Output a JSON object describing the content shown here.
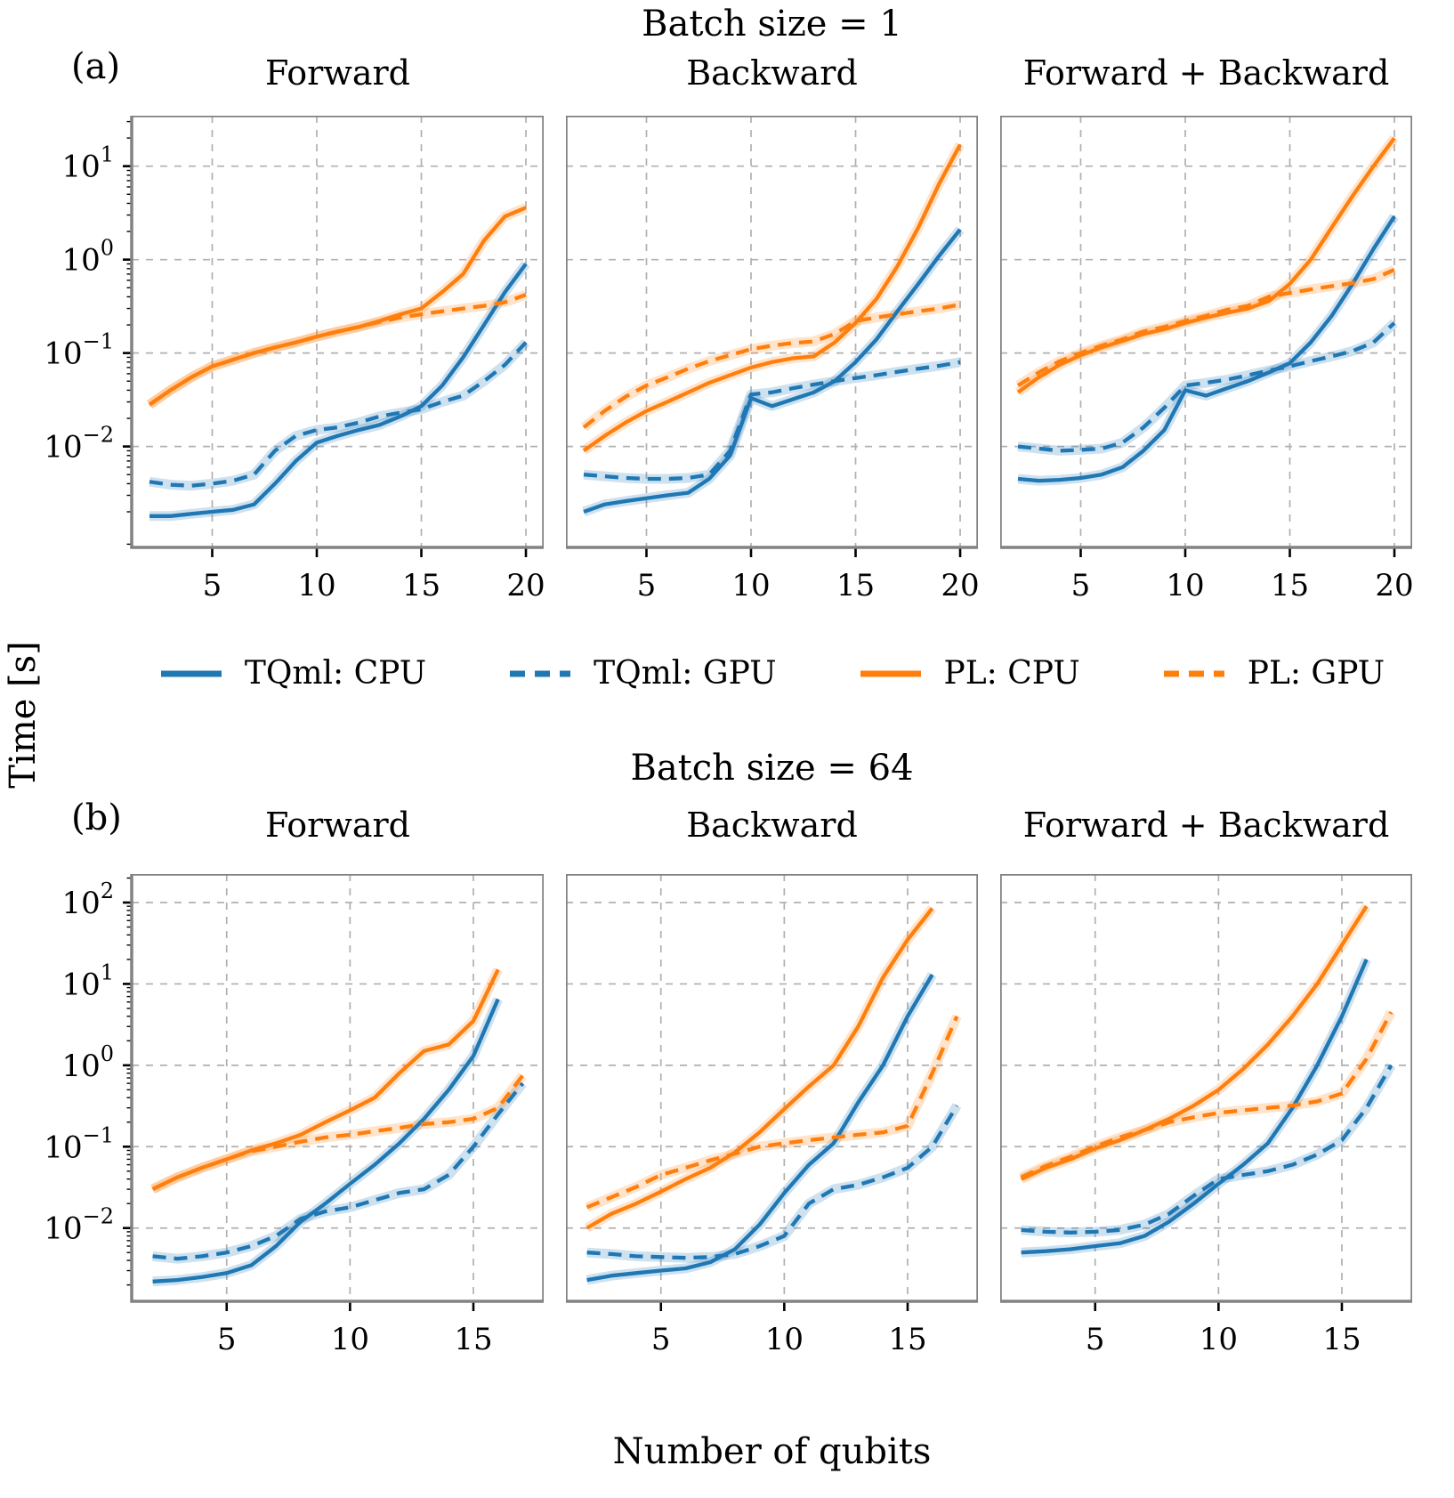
{
  "figure": {
    "suptitle_a": "Batch size = 1",
    "suptitle_b": "Batch size = 64",
    "row_a_label": "(a)",
    "row_b_label": "(b)",
    "ylabel": "Time [s]",
    "xlabel": "Number of qubits",
    "legend": [
      {
        "label": "TQml: CPU",
        "color": "#1f77b4",
        "dash": false
      },
      {
        "label": "TQml: GPU",
        "color": "#1f77b4",
        "dash": true
      },
      {
        "label": "PL: CPU",
        "color": "#ff7f0e",
        "dash": false
      },
      {
        "label": "PL: GPU",
        "color": "#ff7f0e",
        "dash": true
      }
    ],
    "accent_blue": "#1f77b4",
    "accent_orange": "#ff7f0e"
  },
  "chart_data": [
    {
      "type": "line",
      "title": "Forward",
      "group": "Batch size = 1",
      "xlabel": "Number of qubits",
      "ylabel": "Time [s]",
      "grid": true,
      "x": [
        2,
        3,
        4,
        5,
        6,
        7,
        8,
        9,
        10,
        11,
        12,
        13,
        14,
        15,
        16,
        17,
        18,
        19,
        20
      ],
      "xlim": [
        1.15,
        20.85
      ],
      "ylim_log10": [
        -3.08,
        1.54
      ],
      "x_ticks": [
        5,
        10,
        15,
        20
      ],
      "y_ticks_log10": [
        1,
        0,
        -1,
        -2
      ],
      "series": [
        {
          "name": "TQml: CPU",
          "color": "#1f77b4",
          "dash": false,
          "values": [
            0.0018,
            0.0018,
            0.0019,
            0.002,
            0.0021,
            0.0024,
            0.004,
            0.007,
            0.011,
            0.013,
            0.015,
            0.017,
            0.021,
            0.027,
            0.045,
            0.09,
            0.2,
            0.45,
            0.9
          ]
        },
        {
          "name": "TQml: GPU",
          "color": "#1f77b4",
          "dash": true,
          "values": [
            0.0042,
            0.0039,
            0.0038,
            0.004,
            0.0043,
            0.005,
            0.009,
            0.013,
            0.015,
            0.016,
            0.018,
            0.021,
            0.023,
            0.025,
            0.03,
            0.035,
            0.05,
            0.075,
            0.13
          ]
        },
        {
          "name": "PL: CPU",
          "color": "#ff7f0e",
          "dash": false,
          "values": [
            0.028,
            0.04,
            0.055,
            0.072,
            0.085,
            0.1,
            0.115,
            0.13,
            0.15,
            0.17,
            0.19,
            0.22,
            0.26,
            0.3,
            0.45,
            0.7,
            1.6,
            2.9,
            3.6
          ]
        },
        {
          "name": "PL: GPU",
          "color": "#ff7f0e",
          "dash": true,
          "values": [
            0.028,
            0.04,
            0.055,
            0.072,
            0.085,
            0.1,
            0.115,
            0.13,
            0.15,
            0.17,
            0.19,
            0.215,
            0.24,
            0.26,
            0.28,
            0.3,
            0.32,
            0.35,
            0.42
          ]
        }
      ]
    },
    {
      "type": "line",
      "title": "Backward",
      "group": "Batch size = 1",
      "xlabel": "Number of qubits",
      "ylabel": "Time [s]",
      "grid": true,
      "x": [
        2,
        3,
        4,
        5,
        6,
        7,
        8,
        9,
        10,
        11,
        12,
        13,
        14,
        15,
        16,
        17,
        18,
        19,
        20
      ],
      "xlim": [
        1.15,
        20.85
      ],
      "ylim_log10": [
        -3.08,
        1.54
      ],
      "x_ticks": [
        5,
        10,
        15,
        20
      ],
      "y_ticks_log10": [
        1,
        0,
        -1,
        -2
      ],
      "series": [
        {
          "name": "TQml: CPU",
          "color": "#1f77b4",
          "dash": false,
          "values": [
            0.002,
            0.0024,
            0.0026,
            0.0028,
            0.003,
            0.0032,
            0.0045,
            0.008,
            0.033,
            0.027,
            0.032,
            0.038,
            0.05,
            0.08,
            0.14,
            0.28,
            0.55,
            1.1,
            2.1
          ]
        },
        {
          "name": "TQml: GPU",
          "color": "#1f77b4",
          "dash": true,
          "values": [
            0.005,
            0.0048,
            0.0046,
            0.0045,
            0.0045,
            0.0046,
            0.005,
            0.009,
            0.036,
            0.038,
            0.042,
            0.046,
            0.05,
            0.054,
            0.058,
            0.063,
            0.068,
            0.073,
            0.08
          ]
        },
        {
          "name": "PL: CPU",
          "color": "#ff7f0e",
          "dash": false,
          "values": [
            0.009,
            0.013,
            0.018,
            0.024,
            0.03,
            0.038,
            0.048,
            0.058,
            0.07,
            0.08,
            0.088,
            0.092,
            0.13,
            0.21,
            0.38,
            0.85,
            2.2,
            6.5,
            17
          ]
        },
        {
          "name": "PL: GPU",
          "color": "#ff7f0e",
          "dash": true,
          "values": [
            0.016,
            0.024,
            0.034,
            0.045,
            0.055,
            0.068,
            0.082,
            0.095,
            0.11,
            0.12,
            0.128,
            0.133,
            0.16,
            0.22,
            0.24,
            0.26,
            0.28,
            0.3,
            0.33
          ]
        }
      ]
    },
    {
      "type": "line",
      "title": "Forward + Backward",
      "group": "Batch size = 1",
      "xlabel": "Number of qubits",
      "ylabel": "Time [s]",
      "grid": true,
      "x": [
        2,
        3,
        4,
        5,
        6,
        7,
        8,
        9,
        10,
        11,
        12,
        13,
        14,
        15,
        16,
        17,
        18,
        19,
        20
      ],
      "xlim": [
        1.15,
        20.85
      ],
      "ylim_log10": [
        -3.08,
        1.54
      ],
      "x_ticks": [
        5,
        10,
        15,
        20
      ],
      "y_ticks_log10": [
        1,
        0,
        -1,
        -2
      ],
      "series": [
        {
          "name": "TQml: CPU",
          "color": "#1f77b4",
          "dash": false,
          "values": [
            0.0045,
            0.0043,
            0.0044,
            0.0046,
            0.005,
            0.006,
            0.009,
            0.015,
            0.04,
            0.035,
            0.042,
            0.05,
            0.062,
            0.078,
            0.13,
            0.25,
            0.55,
            1.3,
            2.9
          ]
        },
        {
          "name": "TQml: GPU",
          "color": "#1f77b4",
          "dash": true,
          "values": [
            0.01,
            0.0095,
            0.009,
            0.0092,
            0.0095,
            0.011,
            0.016,
            0.026,
            0.045,
            0.048,
            0.052,
            0.058,
            0.065,
            0.072,
            0.082,
            0.092,
            0.105,
            0.13,
            0.21
          ]
        },
        {
          "name": "PL: CPU",
          "color": "#ff7f0e",
          "dash": false,
          "values": [
            0.038,
            0.055,
            0.075,
            0.095,
            0.115,
            0.135,
            0.16,
            0.18,
            0.21,
            0.24,
            0.27,
            0.3,
            0.36,
            0.55,
            1.0,
            2.2,
            4.8,
            10,
            20
          ]
        },
        {
          "name": "PL: GPU",
          "color": "#ff7f0e",
          "dash": true,
          "values": [
            0.045,
            0.062,
            0.082,
            0.1,
            0.12,
            0.14,
            0.17,
            0.19,
            0.22,
            0.25,
            0.29,
            0.32,
            0.4,
            0.44,
            0.48,
            0.52,
            0.56,
            0.62,
            0.78
          ]
        }
      ]
    },
    {
      "type": "line",
      "title": "Forward",
      "group": "Batch size = 64",
      "xlabel": "Number of qubits",
      "ylabel": "Time [s]",
      "grid": true,
      "x": [
        2,
        3,
        4,
        5,
        6,
        7,
        8,
        9,
        10,
        11,
        12,
        13,
        14,
        15,
        16,
        17
      ],
      "xlim": [
        1.15,
        17.85
      ],
      "ylim_log10": [
        -2.9,
        2.35
      ],
      "x_ticks": [
        5,
        10,
        15
      ],
      "y_ticks_log10": [
        2,
        1,
        0,
        -1,
        -2
      ],
      "series": [
        {
          "name": "TQml: CPU",
          "color": "#1f77b4",
          "dash": false,
          "values": [
            0.0022,
            0.0023,
            0.0025,
            0.0028,
            0.0035,
            0.006,
            0.012,
            0.02,
            0.035,
            0.06,
            0.11,
            0.22,
            0.5,
            1.3,
            6.5
          ]
        },
        {
          "name": "TQml: GPU",
          "color": "#1f77b4",
          "dash": true,
          "values": [
            0.0045,
            0.0042,
            0.0045,
            0.005,
            0.006,
            0.008,
            0.013,
            0.016,
            0.018,
            0.022,
            0.027,
            0.03,
            0.045,
            0.1,
            0.25,
            0.6
          ]
        },
        {
          "name": "PL: CPU",
          "color": "#ff7f0e",
          "dash": false,
          "values": [
            0.03,
            0.042,
            0.055,
            0.07,
            0.09,
            0.11,
            0.14,
            0.2,
            0.28,
            0.4,
            0.8,
            1.5,
            1.8,
            3.5,
            15
          ]
        },
        {
          "name": "PL: GPU",
          "color": "#ff7f0e",
          "dash": true,
          "values": [
            0.03,
            0.042,
            0.055,
            0.07,
            0.088,
            0.1,
            0.115,
            0.13,
            0.14,
            0.155,
            0.17,
            0.19,
            0.2,
            0.22,
            0.3,
            0.75
          ]
        }
      ]
    },
    {
      "type": "line",
      "title": "Backward",
      "group": "Batch size = 64",
      "xlabel": "Number of qubits",
      "ylabel": "Time [s]",
      "grid": true,
      "x": [
        2,
        3,
        4,
        5,
        6,
        7,
        8,
        9,
        10,
        11,
        12,
        13,
        14,
        15,
        16,
        17
      ],
      "xlim": [
        1.15,
        17.85
      ],
      "ylim_log10": [
        -2.9,
        2.35
      ],
      "x_ticks": [
        5,
        10,
        15
      ],
      "y_ticks_log10": [
        2,
        1,
        0,
        -1,
        -2
      ],
      "series": [
        {
          "name": "TQml: CPU",
          "color": "#1f77b4",
          "dash": false,
          "values": [
            0.0023,
            0.0026,
            0.0028,
            0.003,
            0.0032,
            0.0038,
            0.0055,
            0.011,
            0.027,
            0.06,
            0.11,
            0.35,
            1.0,
            4.0,
            13
          ]
        },
        {
          "name": "TQml: GPU",
          "color": "#1f77b4",
          "dash": true,
          "values": [
            0.005,
            0.0048,
            0.0045,
            0.0044,
            0.0043,
            0.0044,
            0.0048,
            0.006,
            0.008,
            0.02,
            0.03,
            0.034,
            0.042,
            0.055,
            0.1,
            0.32
          ]
        },
        {
          "name": "PL: CPU",
          "color": "#ff7f0e",
          "dash": false,
          "values": [
            0.01,
            0.015,
            0.02,
            0.028,
            0.04,
            0.055,
            0.085,
            0.15,
            0.29,
            0.55,
            1.0,
            3.0,
            12,
            35,
            85
          ]
        },
        {
          "name": "PL: GPU",
          "color": "#ff7f0e",
          "dash": true,
          "values": [
            0.018,
            0.024,
            0.032,
            0.045,
            0.055,
            0.068,
            0.082,
            0.1,
            0.11,
            0.12,
            0.13,
            0.14,
            0.15,
            0.18,
            0.8,
            4.0
          ]
        }
      ]
    },
    {
      "type": "line",
      "title": "Forward + Backward",
      "group": "Batch size = 64",
      "xlabel": "Number of qubits",
      "ylabel": "Time [s]",
      "grid": true,
      "x": [
        2,
        3,
        4,
        5,
        6,
        7,
        8,
        9,
        10,
        11,
        12,
        13,
        14,
        15,
        16,
        17
      ],
      "xlim": [
        1.15,
        17.85
      ],
      "ylim_log10": [
        -2.9,
        2.35
      ],
      "x_ticks": [
        5,
        10,
        15
      ],
      "y_ticks_log10": [
        2,
        1,
        0,
        -1,
        -2
      ],
      "series": [
        {
          "name": "TQml: CPU",
          "color": "#1f77b4",
          "dash": false,
          "values": [
            0.005,
            0.0052,
            0.0055,
            0.006,
            0.0065,
            0.008,
            0.012,
            0.02,
            0.035,
            0.06,
            0.11,
            0.3,
            1.0,
            4.0,
            20
          ]
        },
        {
          "name": "TQml: GPU",
          "color": "#1f77b4",
          "dash": true,
          "values": [
            0.0095,
            0.009,
            0.0088,
            0.009,
            0.0095,
            0.011,
            0.015,
            0.025,
            0.04,
            0.045,
            0.05,
            0.06,
            0.08,
            0.12,
            0.3,
            1.0
          ]
        },
        {
          "name": "PL: CPU",
          "color": "#ff7f0e",
          "dash": false,
          "values": [
            0.04,
            0.055,
            0.07,
            0.095,
            0.12,
            0.16,
            0.22,
            0.32,
            0.5,
            0.9,
            1.8,
            4.0,
            10,
            30,
            90
          ]
        },
        {
          "name": "PL: GPU",
          "color": "#ff7f0e",
          "dash": true,
          "values": [
            0.042,
            0.058,
            0.075,
            0.1,
            0.13,
            0.16,
            0.2,
            0.23,
            0.26,
            0.28,
            0.3,
            0.32,
            0.36,
            0.45,
            1.2,
            4.5
          ]
        }
      ]
    }
  ]
}
